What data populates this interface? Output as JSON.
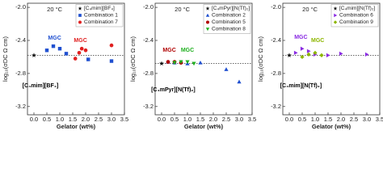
{
  "chart_data": [
    {
      "type": "scatter",
      "title": "20 °C",
      "xlabel": "Gelator (wt%)",
      "ylabel": "log₁₀(σDC Ω cm)",
      "xlim": [
        -0.25,
        3.5
      ],
      "xticks": [
        {
          "value": 0,
          "label": "0.0"
        },
        0.5,
        {
          "value": 1,
          "label": "1.0"
        },
        1.5,
        {
          "value": 2,
          "label": "2.0"
        },
        2.5,
        {
          "value": 3,
          "label": "3.0"
        },
        3.5
      ],
      "ylim": [
        -3.3,
        -1.95
      ],
      "yticks": [
        {
          "value": -2,
          "label": "-2.0"
        },
        -2.4,
        -2.8,
        -3.2
      ],
      "ref_line": -2.58,
      "legend": "upper right",
      "series": [
        {
          "name": "[C₄mim][BF₄]",
          "color": "#000000",
          "marker": "star",
          "x": [
            0
          ],
          "values": [
            -2.58
          ]
        },
        {
          "name": "Combination 1",
          "color": "#2050d0",
          "marker": "square",
          "x": [
            0.5,
            0.75,
            1.0,
            1.25,
            2.1,
            3.0
          ],
          "values": [
            -2.52,
            -2.47,
            -2.5,
            -2.56,
            -2.63,
            -2.65
          ]
        },
        {
          "name": "Combination 7",
          "color": "#e02020",
          "marker": "circle",
          "x": [
            1.6,
            1.75,
            1.85,
            2.0,
            3.0
          ],
          "values": [
            -2.62,
            -2.55,
            -2.5,
            -2.52,
            -2.46
          ]
        }
      ],
      "annotations": [
        {
          "text": "MGC",
          "color": "#2050d0",
          "x": 0.8,
          "y": -2.37
        },
        {
          "text": "MGC",
          "color": "#e02020",
          "x": 1.8,
          "y": -2.4
        },
        {
          "text": "[C₄mim][BF₄]",
          "color": "#000000",
          "x": 0.25,
          "y": -2.95
        }
      ]
    },
    {
      "type": "scatter",
      "title": "20 °C",
      "xlabel": "Gelator (wt%)",
      "ylabel": "log₁₀(σDC Ω cm)",
      "xlim": [
        -0.25,
        3.5
      ],
      "xticks": [
        {
          "value": 0,
          "label": "0.0"
        },
        0.5,
        {
          "value": 1,
          "label": "1.0"
        },
        1.5,
        {
          "value": 2,
          "label": "2.0"
        },
        2.5,
        {
          "value": 3,
          "label": "3.0"
        },
        3.5
      ],
      "ylim": [
        -3.3,
        -1.95
      ],
      "yticks": [
        {
          "value": -2,
          "label": "-2.0"
        },
        -2.4,
        -2.8,
        -3.2
      ],
      "ref_line": -2.68,
      "legend": "upper right",
      "series": [
        {
          "name": "[C₄mPyr][N(Tf)₂]",
          "color": "#000000",
          "marker": "star",
          "x": [
            0
          ],
          "values": [
            -2.68
          ]
        },
        {
          "name": "Combination 2",
          "color": "#2050d0",
          "marker": "triangle-up",
          "x": [
            0.25,
            0.5,
            0.75,
            1.0,
            1.5,
            2.5,
            3.0
          ],
          "values": [
            -2.66,
            -2.67,
            -2.66,
            -2.68,
            -2.67,
            -2.75,
            -2.9
          ]
        },
        {
          "name": "Combination 5",
          "color": "#b00000",
          "marker": "circle",
          "x": [
            0.25,
            0.5,
            0.75
          ],
          "values": [
            -2.66,
            -2.66,
            -2.67
          ]
        },
        {
          "name": "Combination 8",
          "color": "#20b020",
          "marker": "triangle-down",
          "x": [
            0.5,
            0.75,
            1.0,
            1.25
          ],
          "values": [
            -2.67,
            -2.66,
            -2.66,
            -2.68
          ]
        }
      ],
      "annotations": [
        {
          "text": "MGC",
          "color": "#b00000",
          "x": 0.3,
          "y": -2.52
        },
        {
          "text": "MGC",
          "color": "#20b020",
          "x": 1.0,
          "y": -2.52
        },
        {
          "text": "[C₄mPyr][N(Tf)₂]",
          "color": "#000000",
          "x": 0.45,
          "y": -3.0
        }
      ]
    },
    {
      "type": "scatter",
      "title": "20 °C",
      "xlabel": "Gelator (wt%)",
      "ylabel": "log₁₀(σDC Ω cm)",
      "xlim": [
        -0.25,
        3.5
      ],
      "xticks": [
        {
          "value": 0,
          "label": "0.0"
        },
        0.5,
        {
          "value": 1,
          "label": "1.0"
        },
        1.5,
        {
          "value": 2,
          "label": "2.0"
        },
        2.5,
        {
          "value": 3,
          "label": "3.0"
        },
        3.5
      ],
      "ylim": [
        -3.3,
        -1.95
      ],
      "yticks": [
        {
          "value": -2,
          "label": "-2.0"
        },
        -2.4,
        -2.8,
        -3.2
      ],
      "ref_line": -2.58,
      "legend": "upper right",
      "series": [
        {
          "name": "[C₄mim][N(Tf)₂]",
          "color": "#000000",
          "marker": "star",
          "x": [
            0
          ],
          "values": [
            -2.58
          ]
        },
        {
          "name": "Combination 6",
          "color": "#8a2be2",
          "marker": "triangle-right",
          "x": [
            0.25,
            0.5,
            0.75,
            1.0,
            1.5,
            2.0,
            3.0
          ],
          "values": [
            -2.55,
            -2.5,
            -2.53,
            -2.57,
            -2.58,
            -2.56,
            -2.57
          ]
        },
        {
          "name": "Combination 9",
          "color": "#8db600",
          "marker": "diamond",
          "x": [
            0.5,
            0.75,
            1.0,
            1.25
          ],
          "values": [
            -2.6,
            -2.57,
            -2.55,
            -2.58
          ]
        }
      ],
      "annotations": [
        {
          "text": "MGC",
          "color": "#8a2be2",
          "x": 0.45,
          "y": -2.36
        },
        {
          "text": "MGC",
          "color": "#8db600",
          "x": 1.1,
          "y": -2.4
        },
        {
          "text": "[C₄mim][N(Tf)₂]",
          "color": "#000000",
          "x": 0.45,
          "y": -2.95
        }
      ]
    }
  ]
}
